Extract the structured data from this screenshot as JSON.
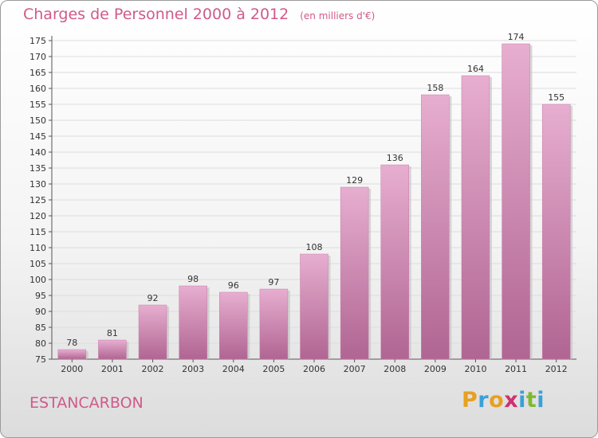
{
  "header": {
    "title": "Charges de Personnel 2000 à 2012",
    "subtitle": "(en milliers d'€)"
  },
  "footer": {
    "commune": "ESTANCARBON",
    "logo_letters": [
      "P",
      "r",
      "o",
      "x",
      "i",
      "t",
      "i"
    ],
    "logo_colors": [
      "#e8a020",
      "#3aa0d8",
      "#e8a020",
      "#d03070",
      "#3aa0d8",
      "#80b830",
      "#3aa0d8"
    ]
  },
  "colors": {
    "bar": "#c77fa8",
    "bar_light": "#e7aed0",
    "bar_dark": "#b06592",
    "axis_text": "#333333",
    "grid": "#dddddd"
  },
  "chart_data": {
    "type": "bar",
    "categories": [
      "2000",
      "2001",
      "2002",
      "2003",
      "2004",
      "2005",
      "2006",
      "2007",
      "2008",
      "2009",
      "2010",
      "2011",
      "2012"
    ],
    "values": [
      78,
      81,
      92,
      98,
      96,
      97,
      108,
      129,
      136,
      158,
      164,
      174,
      155
    ],
    "title": "Charges de Personnel 2000 à 2012",
    "subtitle": "(en milliers d'€)",
    "xlabel": "",
    "ylabel": "",
    "ylim": [
      75,
      175
    ],
    "yticks": [
      75,
      80,
      85,
      90,
      95,
      100,
      105,
      110,
      115,
      120,
      125,
      130,
      135,
      140,
      145,
      150,
      155,
      160,
      165,
      170,
      175
    ],
    "grid": true,
    "data_labels": true
  }
}
